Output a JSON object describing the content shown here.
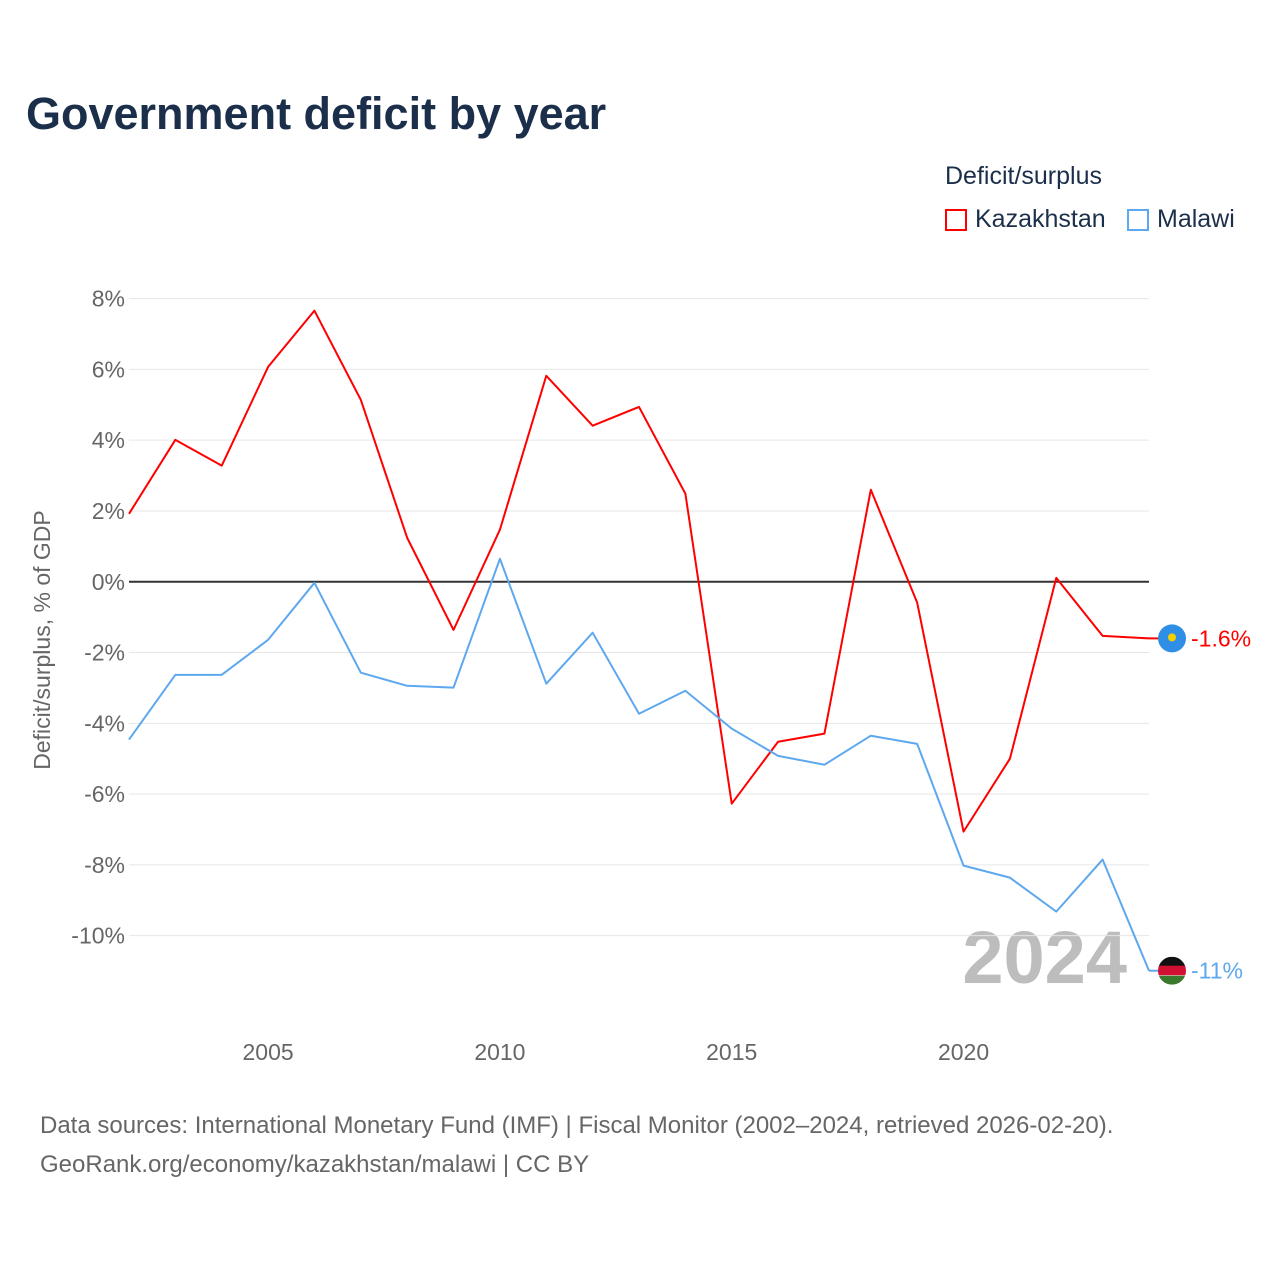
{
  "chart_data": {
    "type": "line",
    "title": "Government deficit by year",
    "xlabel": "",
    "ylabel": "Deficit/surplus, % of GDP",
    "legend_title": "Deficit/surplus",
    "legend_position": "top-right",
    "xlim": [
      2002,
      2024
    ],
    "ylim": [
      -12.1,
      8.3
    ],
    "x_ticks": [
      2005,
      2010,
      2015,
      2020
    ],
    "x_tick_labels": [
      "2005",
      "2010",
      "2015",
      "2020"
    ],
    "y_ticks": [
      8,
      6,
      4,
      2,
      0,
      -2,
      -4,
      -6,
      -8,
      -10
    ],
    "y_tick_labels": [
      "8%",
      "6%",
      "4%",
      "2%",
      "0%",
      "-2%",
      "-4%",
      "-6%",
      "-8%",
      "-10%"
    ],
    "grid": true,
    "x": [
      2002,
      2003,
      2004,
      2005,
      2006,
      2007,
      2008,
      2009,
      2010,
      2011,
      2012,
      2013,
      2014,
      2015,
      2016,
      2017,
      2018,
      2019,
      2020,
      2021,
      2022,
      2023,
      2024
    ],
    "series": [
      {
        "name": "Kazakhstan",
        "color": "#ff0000",
        "end_label": "-1.6%",
        "values": [
          1.92,
          4.01,
          3.28,
          6.07,
          7.66,
          5.14,
          1.24,
          -1.36,
          1.47,
          5.82,
          4.41,
          4.94,
          2.49,
          -6.27,
          -4.52,
          -4.29,
          2.6,
          -0.59,
          -7.06,
          -5.0,
          0.11,
          -1.53,
          -1.6
        ]
      },
      {
        "name": "Malawi",
        "color": "#5ea8ee",
        "end_label": "-11%",
        "values": [
          -4.46,
          -2.63,
          -2.63,
          -1.64,
          -0.03,
          -2.57,
          -2.94,
          -2.99,
          0.65,
          -2.88,
          -1.44,
          -3.73,
          -3.08,
          -4.15,
          -4.92,
          -5.17,
          -4.35,
          -4.58,
          -8.02,
          -8.36,
          -9.32,
          -7.85,
          -10.99
        ]
      }
    ],
    "annotation": "2024"
  },
  "footer": {
    "line1": "Data sources: International Monetary Fund (IMF) | Fiscal Monitor (2002–2024, retrieved 2026-02-20).",
    "line2": "GeoRank.org/economy/kazakhstan/malawi | CC BY"
  }
}
